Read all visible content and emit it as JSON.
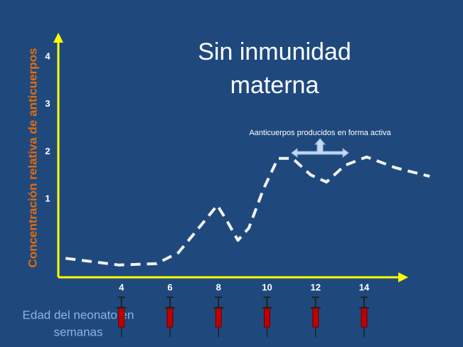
{
  "chart_data": {
    "type": "line",
    "title": [
      "Sin  inmunidad",
      "materna"
    ],
    "y_label": "Concentración relativa de anticuerpos",
    "x_label": [
      "Edad del neonato en",
      "semanas"
    ],
    "annotation": "Aanticuerpos producidos en forma activa",
    "x": [
      1.7,
      3.9,
      5.45,
      6.35,
      7.3,
      7.95,
      8.35,
      8.8,
      9.25,
      9.85,
      10.45,
      11.05,
      11.8,
      12.45,
      13.2,
      14.1,
      15.3,
      16.7
    ],
    "series": [
      {
        "color": "#f2f2f2",
        "dashed": true,
        "values": [
          -0.25,
          -0.39,
          -0.36,
          -0.13,
          0.46,
          0.87,
          0.54,
          0.13,
          0.39,
          1.21,
          1.86,
          1.86,
          1.51,
          1.36,
          1.71,
          1.89,
          1.66,
          1.48
        ]
      }
    ],
    "xlim": [
      1.4,
      15.7
    ],
    "ylim": [
      -0.65,
      4.45
    ],
    "xticks": [
      4,
      6,
      8,
      10,
      12,
      14
    ],
    "yticks": [
      1,
      2,
      3,
      4
    ],
    "grid": false,
    "axis_color": "#ffff00"
  }
}
